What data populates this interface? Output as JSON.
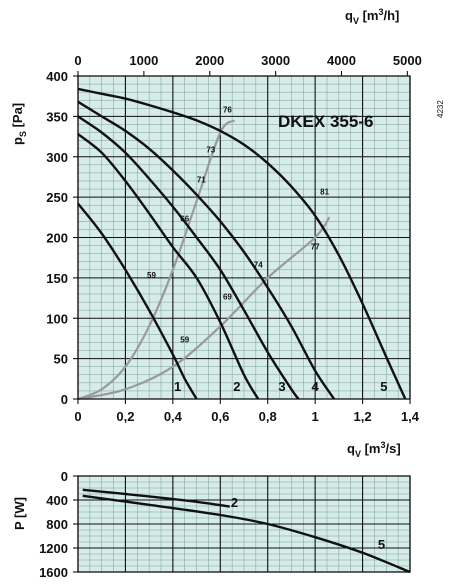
{
  "colors": {
    "plot_bg": "#d6ece8",
    "grid_major": "#111111",
    "grid_minor": "#7d9d99",
    "curve": "#111111",
    "efficiency": "#9a9a9a"
  },
  "side_code": "4232",
  "chart_data": [
    {
      "type": "line",
      "title": "DKEX 355-6",
      "xlabel": "qV [m3/s]",
      "x2label": "qV [m3/h]",
      "ylabel": "pS [Pa]",
      "xlim": [
        0,
        1.4
      ],
      "ylim": [
        0,
        400
      ],
      "x_ticks": [
        "0",
        "0,2",
        "0,4",
        "0,6",
        "0,8",
        "1",
        "1,2",
        "1,4"
      ],
      "y_ticks": [
        "0",
        "50",
        "100",
        "150",
        "200",
        "250",
        "300",
        "350",
        "400"
      ],
      "x2_ticks": [
        "0",
        "1000",
        "2000",
        "3000",
        "4000",
        "5000"
      ],
      "grid": true,
      "series": [
        {
          "name": "1",
          "x": [
            0,
            0.1,
            0.2,
            0.3,
            0.4,
            0.45,
            0.5
          ],
          "y": [
            242,
            205,
            160,
            110,
            55,
            25,
            0
          ]
        },
        {
          "name": "2",
          "x": [
            0,
            0.1,
            0.2,
            0.3,
            0.4,
            0.5,
            0.6,
            0.7,
            0.76
          ],
          "y": [
            328,
            305,
            270,
            230,
            188,
            150,
            95,
            30,
            0
          ]
        },
        {
          "name": "3",
          "x": [
            0,
            0.1,
            0.2,
            0.3,
            0.4,
            0.5,
            0.6,
            0.7,
            0.8,
            0.9,
            0.93
          ],
          "y": [
            350,
            330,
            305,
            273,
            238,
            200,
            160,
            110,
            58,
            12,
            0
          ]
        },
        {
          "name": "4",
          "x": [
            0,
            0.1,
            0.2,
            0.3,
            0.4,
            0.5,
            0.6,
            0.7,
            0.8,
            0.9,
            1.0,
            1.08
          ],
          "y": [
            368,
            350,
            332,
            310,
            283,
            253,
            220,
            182,
            138,
            90,
            35,
            0
          ]
        },
        {
          "name": "5",
          "x": [
            0,
            0.1,
            0.2,
            0.3,
            0.4,
            0.5,
            0.6,
            0.7,
            0.8,
            0.9,
            1.0,
            1.1,
            1.2,
            1.3,
            1.38
          ],
          "y": [
            384,
            378,
            372,
            364,
            355,
            345,
            332,
            315,
            292,
            263,
            227,
            178,
            118,
            52,
            0
          ]
        }
      ],
      "efficiency_lines": [
        {
          "x": [
            0,
            0.1,
            0.2,
            0.3,
            0.4,
            0.5,
            0.6,
            0.66
          ],
          "y": [
            0,
            12,
            40,
            90,
            160,
            245,
            330,
            345
          ]
        },
        {
          "x": [
            0,
            0.2,
            0.4,
            0.6,
            0.8,
            1.0,
            1.06
          ],
          "y": [
            0,
            12,
            40,
            90,
            150,
            200,
            225
          ]
        }
      ],
      "efficiency_labels": [
        {
          "text": "59",
          "x": 0.31,
          "y": 150
        },
        {
          "text": "59",
          "x": 0.45,
          "y": 70
        },
        {
          "text": "66",
          "x": 0.45,
          "y": 220
        },
        {
          "text": "71",
          "x": 0.52,
          "y": 268
        },
        {
          "text": "73",
          "x": 0.56,
          "y": 305
        },
        {
          "text": "76",
          "x": 0.63,
          "y": 355
        },
        {
          "text": "69",
          "x": 0.63,
          "y": 123
        },
        {
          "text": "74",
          "x": 0.76,
          "y": 163
        },
        {
          "text": "77",
          "x": 1.0,
          "y": 185
        },
        {
          "text": "81",
          "x": 1.04,
          "y": 253
        }
      ],
      "curve_labels": [
        {
          "text": "1",
          "x": 0.42,
          "y": 10
        },
        {
          "text": "2",
          "x": 0.67,
          "y": 10
        },
        {
          "text": "3",
          "x": 0.86,
          "y": 10
        },
        {
          "text": "4",
          "x": 1.0,
          "y": 10
        },
        {
          "text": "5",
          "x": 1.29,
          "y": 10
        }
      ]
    },
    {
      "type": "line",
      "ylabel": "P [W]",
      "xlim": [
        0,
        1.4
      ],
      "ylim": [
        0,
        1600
      ],
      "y_ticks": [
        "0",
        "400",
        "800",
        "1200",
        "1600"
      ],
      "grid": true,
      "series": [
        {
          "name": "2",
          "x": [
            0.02,
            0.3,
            0.5,
            0.64
          ],
          "y": [
            230,
            340,
            430,
            510
          ]
        },
        {
          "name": "5",
          "x": [
            0.02,
            0.3,
            0.6,
            0.8,
            1.0,
            1.2,
            1.4
          ],
          "y": [
            330,
            480,
            650,
            800,
            1020,
            1280,
            1600
          ]
        }
      ],
      "curve_labels": [
        {
          "text": "2",
          "x": 0.66,
          "y": 430
        },
        {
          "text": "5",
          "x": 1.28,
          "y": 1130
        }
      ]
    }
  ]
}
